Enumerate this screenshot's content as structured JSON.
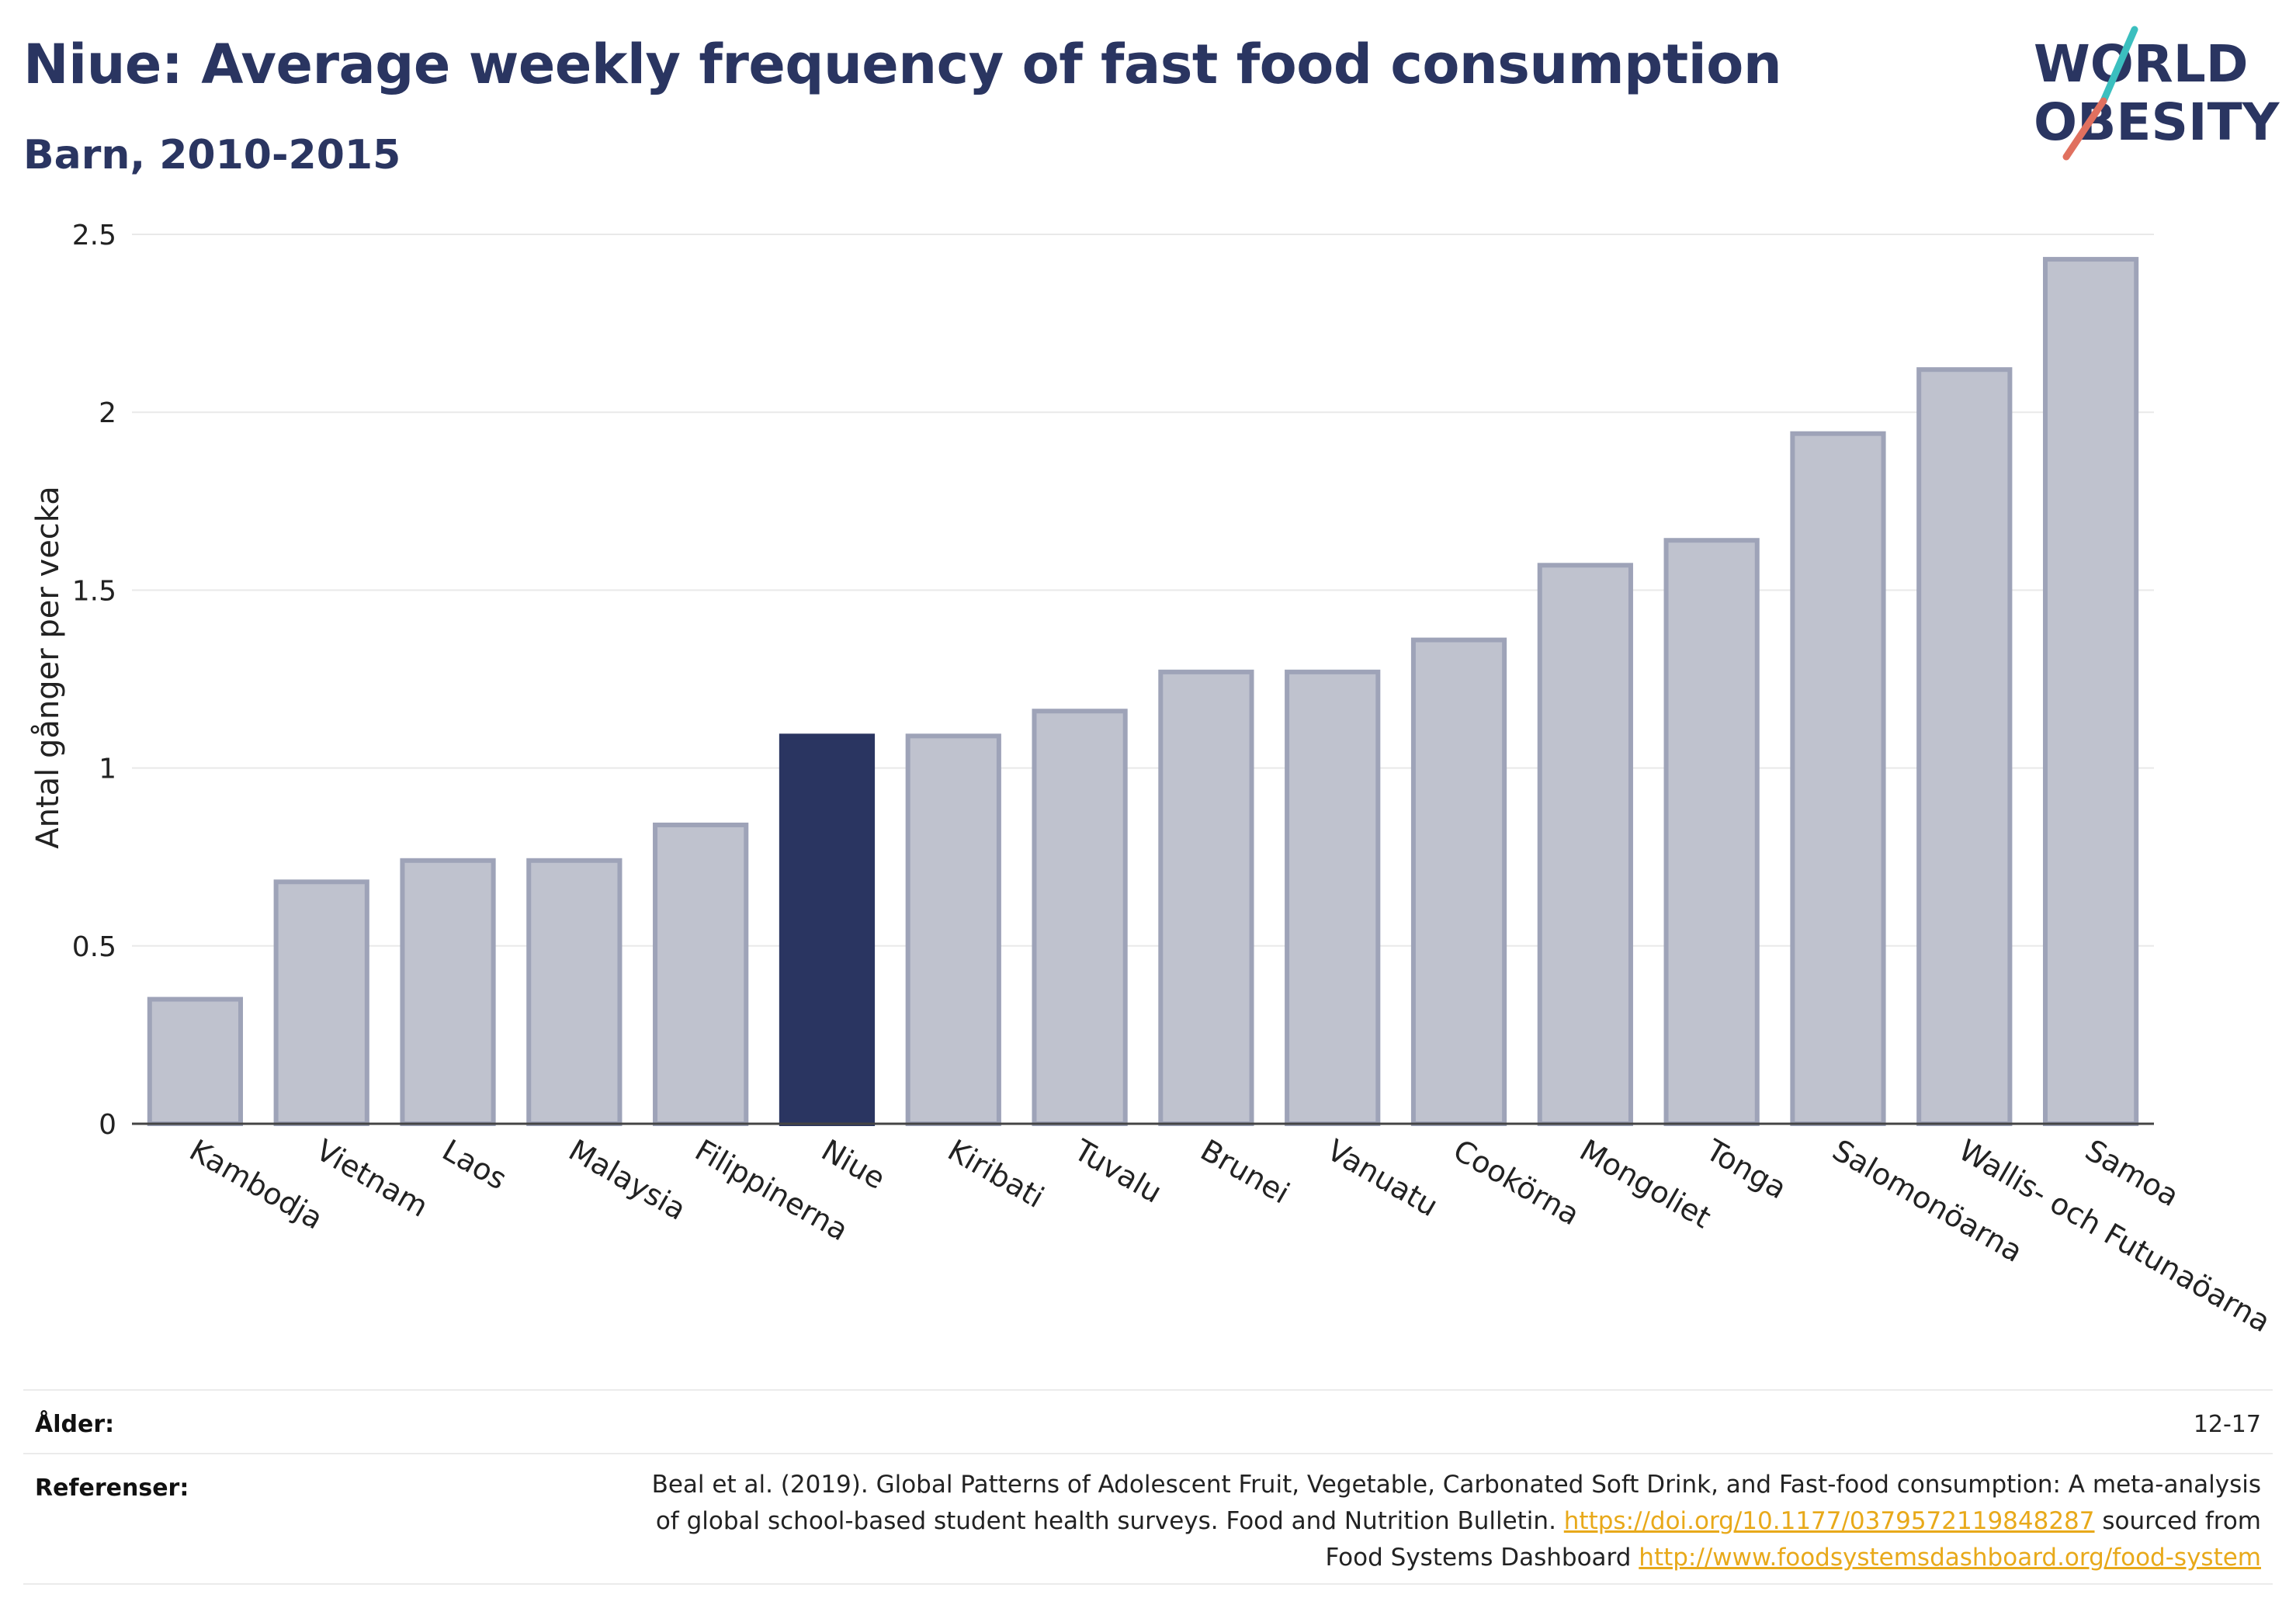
{
  "header": {
    "title": "Niue: Average weekly frequency of fast food consumption",
    "subtitle": "Barn, 2010-2015"
  },
  "logo": {
    "line1": "WORLD",
    "line2": "OBESITY"
  },
  "colors": {
    "highlight": "#2a3561",
    "bar": "#bfc2ce",
    "bar_stroke": "#9ea3b8",
    "accent_teal": "#3bbfbf",
    "accent_red": "#e0705f",
    "link": "#e8a91a"
  },
  "chart_data": {
    "type": "bar",
    "title": "Niue: Average weekly frequency of fast food consumption",
    "subtitle": "Barn, 2010-2015",
    "ylabel": "Antal gånger per vecka",
    "xlabel": "",
    "ylim": [
      0,
      2.5
    ],
    "yticks": [
      0,
      0.5,
      1,
      1.5,
      2,
      2.5
    ],
    "ytick_labels": [
      "0",
      "0.5",
      "1",
      "1.5",
      "2",
      "2.5"
    ],
    "highlight": "Niue",
    "categories": [
      "Kambodja",
      "Vietnam",
      "Laos",
      "Malaysia",
      "Filippinerna",
      "Niue",
      "Kiribati",
      "Tuvalu",
      "Brunei",
      "Vanuatu",
      "Cookörna",
      "Mongoliet",
      "Tonga",
      "Salomonöarna",
      "Wallis- och Futunaöarna",
      "Samoa"
    ],
    "values": [
      0.35,
      0.68,
      0.74,
      0.74,
      0.84,
      1.09,
      1.09,
      1.16,
      1.27,
      1.27,
      1.36,
      1.57,
      1.64,
      1.94,
      2.12,
      2.43
    ],
    "grid": true,
    "legend": "none"
  },
  "footer": {
    "age_label": "Ålder:",
    "age_value": "12-17",
    "refs_label": "Referenser:",
    "refs_text_1": "Beal et al. (2019). Global Patterns of Adolescent Fruit, Vegetable, Carbonated Soft Drink, and Fast-food consumption: A meta-analysis of global school-based student health surveys. Food and Nutrition Bulletin.",
    "refs_link_1": "https://doi.org/10.1177/0379572119848287",
    "refs_text_2": "sourced from Food Systems Dashboard",
    "refs_link_2": "http://www.foodsystemsdashboard.org/food-system"
  }
}
